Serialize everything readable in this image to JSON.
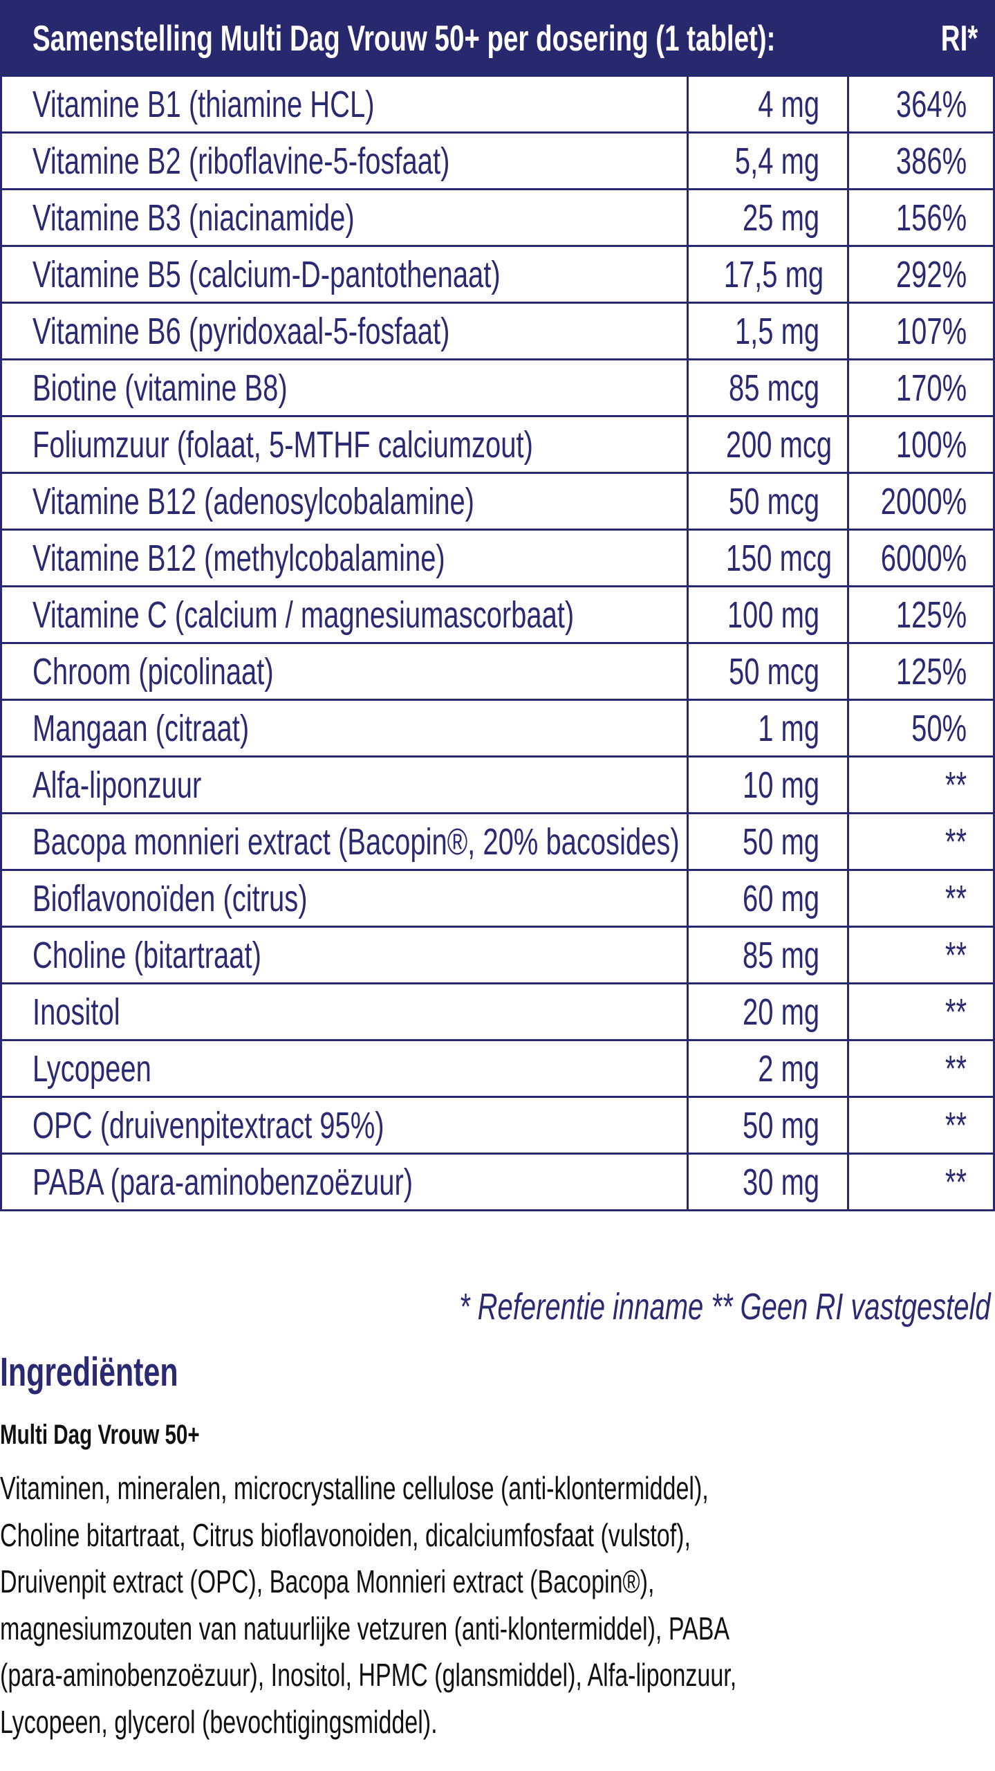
{
  "table": {
    "header": "Samenstelling Multi Dag Vrouw 50+ per dosering (1 tablet):",
    "header_ri": "RI*",
    "rows": [
      {
        "name": "Vitamine B1 (thiamine HCL)",
        "amount": "4 mg",
        "ri": "364%"
      },
      {
        "name": "Vitamine B2 (riboflavine-5-fosfaat)",
        "amount": "5,4 mg",
        "ri": "386%"
      },
      {
        "name": "Vitamine B3 (niacinamide)",
        "amount": "25 mg",
        "ri": "156%"
      },
      {
        "name": "Vitamine B5 (calcium-D-pantothenaat)",
        "amount": "17,5 mg",
        "ri": "292%"
      },
      {
        "name": "Vitamine B6 (pyridoxaal-5-fosfaat)",
        "amount": "1,5 mg",
        "ri": "107%"
      },
      {
        "name": "Biotine (vitamine B8)",
        "amount": "85 mcg",
        "ri": "170%"
      },
      {
        "name": "Foliumzuur (folaat, 5-MTHF calciumzout)",
        "amount": "200 mcg",
        "ri": "100%"
      },
      {
        "name": "Vitamine B12 (adenosylcobalamine)",
        "amount": "50 mcg",
        "ri": "2000%"
      },
      {
        "name": "Vitamine B12 (methylcobalamine)",
        "amount": "150 mcg",
        "ri": "6000%"
      },
      {
        "name": "Vitamine C (calcium / magnesiumascorbaat)",
        "amount": "100 mg",
        "ri": "125%"
      },
      {
        "name": "Chroom (picolinaat)",
        "amount": "50 mcg",
        "ri": "125%"
      },
      {
        "name": "Mangaan (citraat)",
        "amount": "1 mg",
        "ri": "50%"
      },
      {
        "name": "Alfa-liponzuur",
        "amount": "10 mg",
        "ri": "**"
      },
      {
        "name": "Bacopa monnieri extract (Bacopin®, 20% bacosides)",
        "amount": "50 mg",
        "ri": "**"
      },
      {
        "name": "Bioflavonoïden (citrus)",
        "amount": "60 mg",
        "ri": "**"
      },
      {
        "name": "Choline (bitartraat)",
        "amount": "85 mg",
        "ri": "**"
      },
      {
        "name": "Inositol",
        "amount": "20 mg",
        "ri": "**"
      },
      {
        "name": "Lycopeen",
        "amount": "2 mg",
        "ri": "**"
      },
      {
        "name": "OPC (druivenpitextract 95%)",
        "amount": "50 mg",
        "ri": "**"
      },
      {
        "name": "PABA (para-aminobenzoëzuur)",
        "amount": "30 mg",
        "ri": "**"
      }
    ]
  },
  "footnote": "* Referentie inname  ** Geen RI vastgesteld",
  "ingredients": {
    "title": "Ingrediënten",
    "product": "Multi Dag Vrouw 50+",
    "lines": [
      "Vitaminen, mineralen, microcrystalline cellulose (anti-klontermiddel),",
      "Choline bitartraat, Citrus bioflavonoiden, dicalciumfosfaat (vulstof),",
      "Druivenpit extract (OPC), Bacopa Monnieri extract (Bacopin®),",
      "magnesiumzouten van natuurlijke vetzuren (anti-klontermiddel), PABA",
      "(para-aminobenzoëzuur), Inositol, HPMC (glansmiddel), Alfa-liponzuur,",
      "Lycopeen, glycerol (bevochtigingsmiddel)."
    ]
  },
  "colors": {
    "brand": "#28286f",
    "text": "#111111"
  }
}
